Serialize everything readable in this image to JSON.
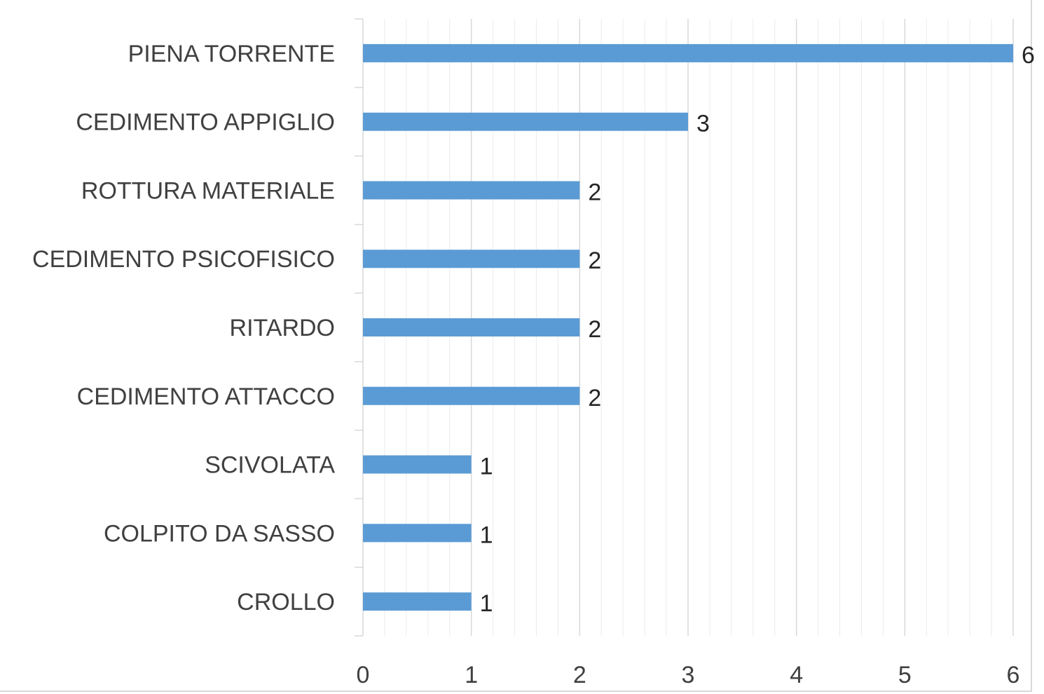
{
  "chart_data": {
    "type": "bar",
    "orientation": "horizontal",
    "title": "",
    "xlabel": "",
    "ylabel": "",
    "categories": [
      "PIENA TORRENTE",
      "CEDIMENTO APPIGLIO",
      "ROTTURA MATERIALE",
      "CEDIMENTO PSICOFISICO",
      "RITARDO",
      "CEDIMENTO ATTACCO",
      "SCIVOLATA",
      "COLPITO DA SASSO",
      "CROLLO"
    ],
    "values": [
      6,
      3,
      2,
      2,
      2,
      2,
      1,
      1,
      1
    ],
    "xlim": [
      0,
      6
    ],
    "x_ticks": [
      0,
      1,
      2,
      3,
      4,
      5,
      6
    ],
    "grid": true,
    "legend": "none",
    "bar_color": "#5b9bd5",
    "grid_color": "#d9d9d9"
  }
}
